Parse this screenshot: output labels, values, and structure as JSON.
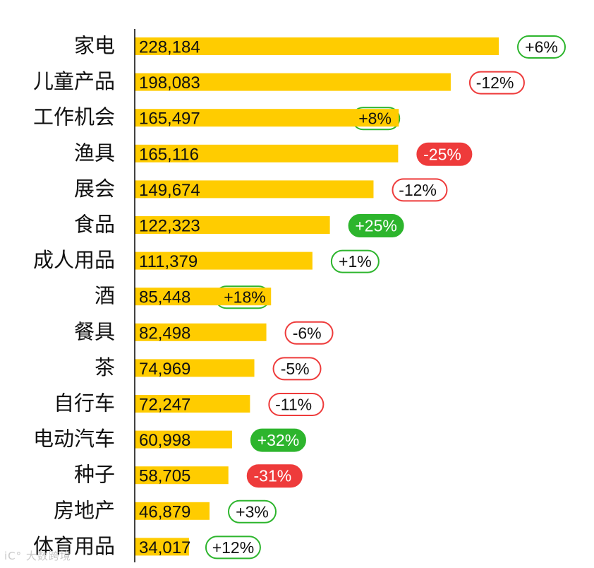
{
  "chart_data": {
    "type": "bar",
    "orientation": "horizontal",
    "title": "",
    "xlabel": "",
    "ylabel": "",
    "categories": [
      "家电",
      "儿童产品",
      "工作机会",
      "渔具",
      "展会",
      "食品",
      "成人用品",
      "酒",
      "餐具",
      "茶",
      "自行车",
      "电动汽车",
      "种子",
      "房地产",
      "体育用品"
    ],
    "values": [
      228184,
      198083,
      165497,
      165116,
      149674,
      122323,
      111379,
      85448,
      82498,
      74969,
      72247,
      60998,
      58705,
      46879,
      34017
    ],
    "value_labels": [
      "228,184",
      "198,083",
      "165,497",
      "165,116",
      "149,674",
      "122,323",
      "111,379",
      "85,448",
      "82,498",
      "74,969",
      "72,247",
      "60,998",
      "58,705",
      "46,879",
      "34,017"
    ],
    "changes": [
      "+6%",
      "-12%",
      "+8%",
      "-25%",
      "-12%",
      "+25%",
      "+1%",
      "+18%",
      "-6%",
      "-5%",
      "-11%",
      "+32%",
      "-31%",
      "+3%",
      "+12%"
    ],
    "change_values": [
      6,
      -12,
      8,
      -25,
      -12,
      25,
      1,
      18,
      -6,
      -5,
      -11,
      32,
      -31,
      3,
      12
    ],
    "change_filled": [
      false,
      false,
      false,
      true,
      false,
      true,
      false,
      false,
      false,
      false,
      false,
      true,
      true,
      false,
      false
    ],
    "xlim": [
      0,
      228184
    ],
    "grid": false,
    "legend": "none"
  },
  "colors": {
    "bar": "#ffcc00",
    "positive": "#2db52d",
    "negative": "#ee3b3b",
    "axis": "#000000",
    "text": "#111111"
  },
  "watermark": "iC° 大数跨境"
}
